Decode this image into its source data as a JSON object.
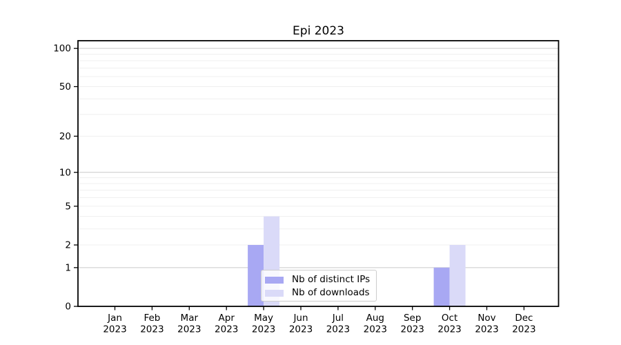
{
  "chart_data": {
    "type": "bar",
    "title": "Epi 2023",
    "categories": [
      "Jan",
      "Feb",
      "Mar",
      "Apr",
      "May",
      "Jun",
      "Jul",
      "Aug",
      "Sep",
      "Oct",
      "Nov",
      "Dec"
    ],
    "year_label": "2023",
    "series": [
      {
        "name": "Nb of distinct IPs",
        "color": "#a8a8f3",
        "values": [
          0,
          0,
          0,
          0,
          2,
          0,
          0,
          0,
          0,
          1,
          0,
          0
        ]
      },
      {
        "name": "Nb of downloads",
        "color": "#dadaf8",
        "values": [
          0,
          0,
          0,
          0,
          4,
          0,
          0,
          0,
          0,
          2,
          0,
          0
        ]
      }
    ],
    "y_axis": {
      "scale": "symlog",
      "tick_values": [
        0,
        1,
        2,
        5,
        10,
        20,
        50,
        100
      ],
      "max_value": 114
    },
    "grid": {
      "horizontal_major": [
        1,
        10,
        100
      ],
      "horizontal_minor": [
        2,
        3,
        4,
        5,
        6,
        7,
        8,
        9,
        20,
        30,
        40,
        50,
        60,
        70,
        80,
        90
      ]
    },
    "legend": {
      "position": "inside-bottom-center",
      "entries": [
        "Nb of distinct IPs",
        "Nb of downloads"
      ]
    },
    "colors": {
      "background": "#ffffff",
      "axis": "#000000",
      "grid_major": "#c9c9c9",
      "grid_minor": "#efefef",
      "legend_border": "#cccccc",
      "tick_text": "#000000"
    }
  }
}
